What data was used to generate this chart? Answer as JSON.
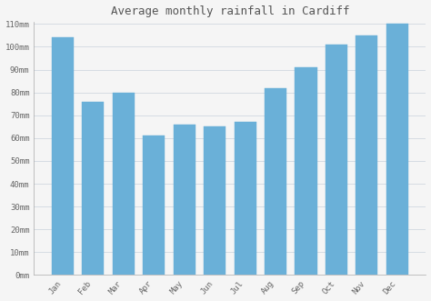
{
  "title": "Average monthly rainfall in Cardiff",
  "months": [
    "Jan",
    "Feb",
    "Mar",
    "Apr",
    "May",
    "Jun",
    "Jul",
    "Aug",
    "Sep",
    "Oct",
    "Nov",
    "Dec"
  ],
  "values": [
    104,
    76,
    80,
    61,
    66,
    65,
    67,
    82,
    91,
    101,
    105,
    110
  ],
  "bar_color": "#6ab0d8",
  "bar_edge_color": "#6ab0d8",
  "background_color": "#f5f5f5",
  "grid_color": "#d0d8e0",
  "ylim": [
    0,
    110
  ],
  "yticks": [
    0,
    10,
    20,
    30,
    40,
    50,
    60,
    70,
    80,
    90,
    100,
    110
  ],
  "ytick_labels": [
    "0mm",
    "10mm",
    "20mm",
    "30mm",
    "40mm",
    "50mm",
    "60mm",
    "70mm",
    "80mm",
    "90mm",
    "100mm",
    "110mm"
  ],
  "title_fontsize": 9,
  "tick_fontsize": 6.5,
  "title_color": "#555555",
  "tick_color": "#666666"
}
